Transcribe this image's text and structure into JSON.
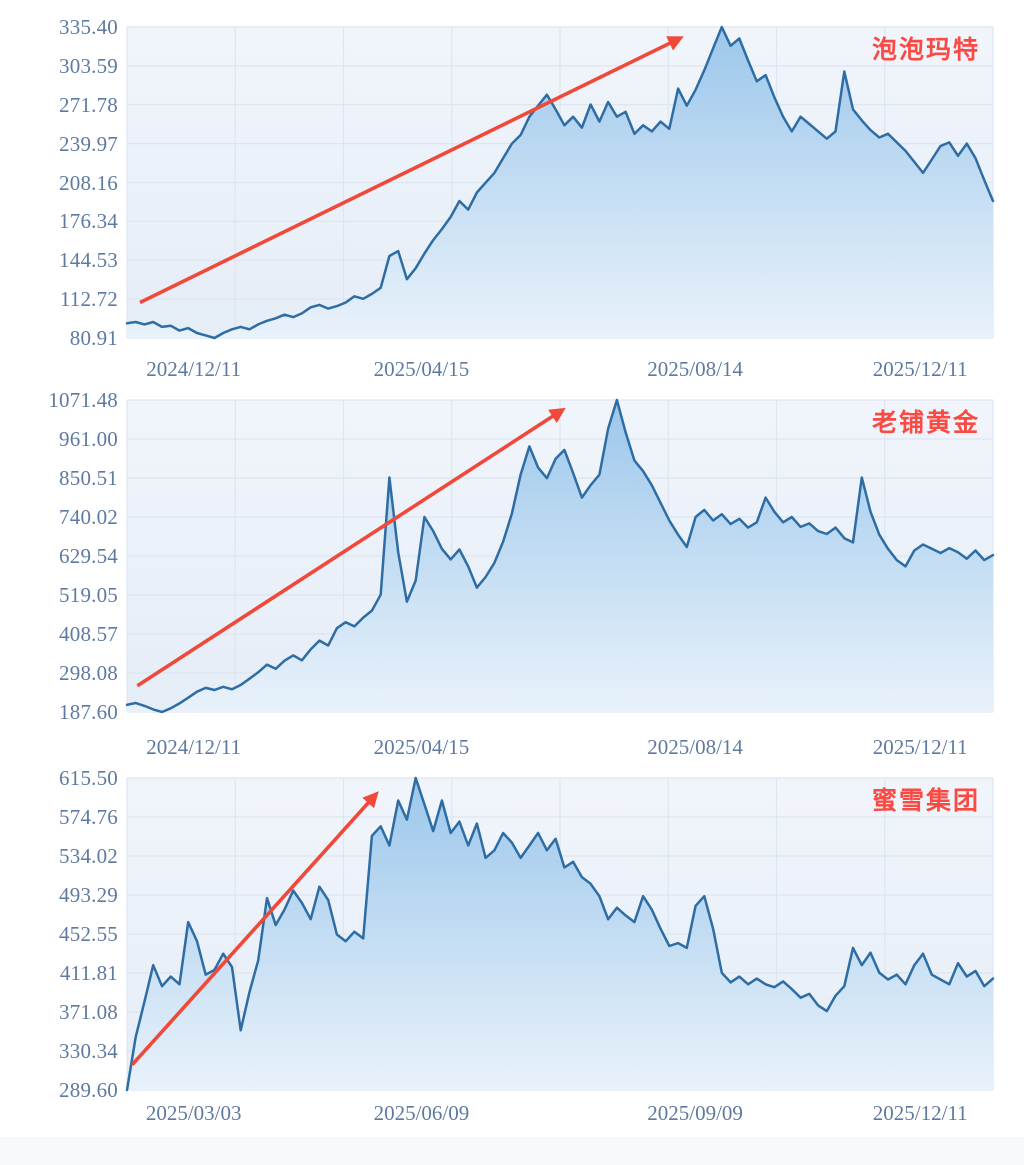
{
  "page": {
    "background": "#ffffff",
    "bottom_strip_color": "#f7f9fb"
  },
  "style": {
    "plot_bg_top": "#f1f5fb",
    "plot_bg_bottom": "#e5edf7",
    "grid_color": "#dce5f1",
    "line_color": "#2e6da4",
    "area_top_color": "#9cc7eb",
    "area_bottom_color": "#e9f2fb",
    "arrow_color": "#f0493a",
    "label_red": "#fa4a44",
    "axis_text_color": "#5f7aa0"
  },
  "chart_data": [
    {
      "type": "area",
      "title": "泡泡玛特",
      "ylim": [
        80.91,
        335.4
      ],
      "y_ticks": [
        "335.40",
        "303.59",
        "271.78",
        "239.97",
        "208.16",
        "176.34",
        "144.53",
        "112.72",
        "80.91"
      ],
      "x_ticks": [
        "2024/12/11",
        "2025/04/15",
        "2025/08/14",
        "2025/12/11"
      ],
      "grid": true,
      "legend_position": "none",
      "annotation_arrow": {
        "from": [
          0.015,
          110
        ],
        "to": [
          0.638,
          326
        ]
      },
      "values": [
        93,
        94,
        92,
        94,
        90,
        91,
        87,
        89,
        85,
        83,
        80.91,
        85,
        88,
        90,
        88,
        92,
        95,
        97,
        100,
        98,
        101,
        106,
        108,
        105,
        107,
        110,
        115,
        113,
        117,
        122,
        148,
        152,
        129,
        138,
        150,
        161,
        170,
        180,
        193,
        186,
        200,
        208,
        216,
        228,
        240,
        247,
        262,
        271,
        280,
        268,
        255,
        262,
        253,
        272,
        258,
        274,
        262,
        266,
        248,
        255,
        250,
        258,
        252,
        285,
        271,
        284,
        300,
        318,
        335.4,
        320,
        326,
        308,
        291,
        296,
        278,
        262,
        250,
        262,
        256,
        250,
        244,
        250,
        299,
        268,
        259,
        251,
        245,
        248,
        241,
        234,
        225,
        216,
        227,
        238,
        241,
        230,
        240,
        228,
        210,
        193
      ]
    },
    {
      "type": "area",
      "title": "老铺黄金",
      "ylim": [
        187.6,
        1071.48
      ],
      "y_ticks": [
        "1071.48",
        "961.00",
        "850.51",
        "740.02",
        "629.54",
        "519.05",
        "408.57",
        "298.08",
        "187.60"
      ],
      "x_ticks": [
        "2024/12/11",
        "2025/04/15",
        "2025/08/14",
        "2025/12/11"
      ],
      "grid": true,
      "legend_position": "none",
      "annotation_arrow": {
        "from": [
          0.012,
          262
        ],
        "to": [
          0.502,
          1042
        ]
      },
      "values": [
        208,
        213,
        205,
        195,
        187.6,
        198,
        212,
        228,
        245,
        256,
        250,
        259,
        252,
        264,
        282,
        300,
        322,
        310,
        333,
        348,
        334,
        365,
        390,
        376,
        425,
        442,
        430,
        455,
        475,
        520,
        852,
        640,
        500,
        560,
        740,
        700,
        650,
        620,
        648,
        600,
        540,
        570,
        610,
        670,
        750,
        860,
        940,
        880,
        850,
        905,
        930,
        865,
        795,
        830,
        860,
        990,
        1071.48,
        980,
        900,
        870,
        830,
        780,
        730,
        690,
        655,
        740,
        760,
        730,
        748,
        720,
        735,
        710,
        725,
        795,
        755,
        725,
        740,
        712,
        722,
        700,
        692,
        710,
        680,
        668,
        852,
        755,
        690,
        650,
        618,
        600,
        645,
        662,
        650,
        638,
        652,
        640,
        622,
        645,
        618,
        632
      ]
    },
    {
      "type": "area",
      "title": "蜜雪集团",
      "ylim": [
        289.6,
        615.5
      ],
      "y_ticks": [
        "615.50",
        "574.76",
        "534.02",
        "493.29",
        "452.55",
        "411.81",
        "371.08",
        "330.34",
        "289.60"
      ],
      "x_ticks": [
        "2025/03/03",
        "2025/06/09",
        "2025/09/09",
        "2025/12/11"
      ],
      "grid": true,
      "legend_position": "none",
      "annotation_arrow": {
        "from": [
          0.006,
          316
        ],
        "to": [
          0.287,
          598
        ]
      },
      "values": [
        289.6,
        345,
        382,
        420,
        398,
        408,
        400,
        465,
        445,
        410,
        415,
        432,
        418,
        352,
        392,
        425,
        490,
        462,
        478,
        498,
        485,
        468,
        502,
        488,
        452,
        445,
        455,
        448,
        555,
        565,
        545,
        592,
        572,
        615.5,
        588,
        560,
        592,
        558,
        570,
        545,
        568,
        532,
        540,
        558,
        548,
        532,
        545,
        558,
        540,
        552,
        522,
        528,
        512,
        505,
        492,
        468,
        480,
        472,
        465,
        492,
        478,
        458,
        440,
        443,
        438,
        482,
        492,
        458,
        412,
        402,
        408,
        400,
        406,
        400,
        397,
        403,
        395,
        386,
        390,
        378,
        372,
        388,
        398,
        438,
        420,
        433,
        412,
        405,
        410,
        400,
        420,
        432,
        410,
        405,
        400,
        422,
        408,
        414,
        398,
        406
      ]
    }
  ]
}
